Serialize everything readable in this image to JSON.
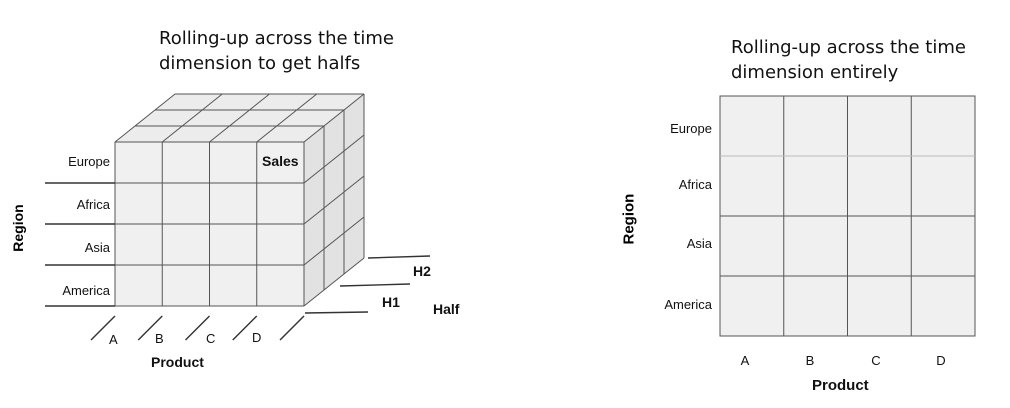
{
  "left_diagram": {
    "caption": "Rolling-up across the time\ndimension to get halfs",
    "regions": [
      "Europe",
      "Africa",
      "Asia",
      "America"
    ],
    "products": [
      "A",
      "B",
      "C",
      "D"
    ],
    "halves": [
      "H1",
      "H2"
    ],
    "cell_label": "Sales",
    "x_axis_title": "Product",
    "y_axis_title": "Region",
    "depth_axis_title": "Half"
  },
  "right_diagram": {
    "caption": "Rolling-up across the time\ndimension entirely",
    "regions": [
      "Europe",
      "Africa",
      "Asia",
      "America"
    ],
    "products": [
      "A",
      "B",
      "C",
      "D"
    ],
    "x_axis_title": "Product",
    "y_axis_title": "Region"
  },
  "colors": {
    "cell_fill": "#f0f0f0",
    "grid_line": "#555555",
    "axis_line": "#333333"
  }
}
